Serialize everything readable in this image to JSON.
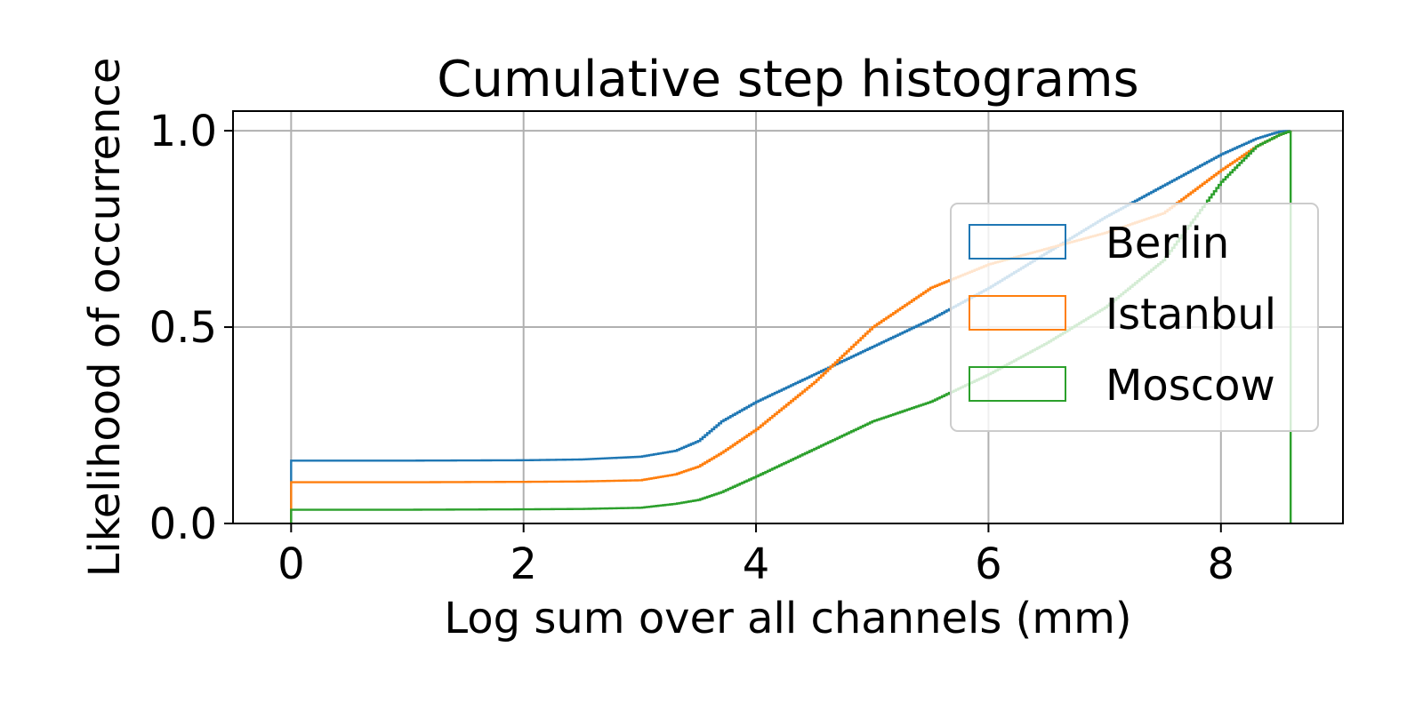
{
  "chart_data": {
    "type": "line",
    "title": "Cumulative step histograms",
    "xlabel": "Log sum over all channels (mm)",
    "ylabel": "Likelihood of occurrence",
    "xlim": [
      -0.5,
      9.05
    ],
    "ylim": [
      0.0,
      1.05
    ],
    "xticks": [
      0,
      2,
      4,
      6,
      8
    ],
    "yticks": [
      0.0,
      0.5,
      1.0
    ],
    "xtick_labels": [
      "0",
      "2",
      "4",
      "6",
      "8"
    ],
    "ytick_labels": [
      "0.0",
      "0.5",
      "1.0"
    ],
    "grid": true,
    "legend_position": "right",
    "step": true,
    "series": [
      {
        "name": "Berlin",
        "color": "#1f77b4",
        "points": [
          [
            0,
            0
          ],
          [
            0,
            0.16
          ],
          [
            1,
            0.16
          ],
          [
            2,
            0.161
          ],
          [
            2.5,
            0.163
          ],
          [
            3.0,
            0.17
          ],
          [
            3.3,
            0.185
          ],
          [
            3.5,
            0.21
          ],
          [
            3.7,
            0.26
          ],
          [
            4.0,
            0.31
          ],
          [
            4.5,
            0.38
          ],
          [
            5.0,
            0.45
          ],
          [
            5.5,
            0.52
          ],
          [
            6.0,
            0.6
          ],
          [
            6.5,
            0.69
          ],
          [
            7.0,
            0.78
          ],
          [
            7.5,
            0.86
          ],
          [
            8.0,
            0.94
          ],
          [
            8.3,
            0.98
          ],
          [
            8.5,
            0.998
          ],
          [
            8.6,
            1.0
          ]
        ]
      },
      {
        "name": "Istanbul",
        "color": "#ff7f0e",
        "points": [
          [
            0,
            0
          ],
          [
            0,
            0.105
          ],
          [
            1,
            0.105
          ],
          [
            2,
            0.106
          ],
          [
            2.5,
            0.107
          ],
          [
            3.0,
            0.11
          ],
          [
            3.3,
            0.125
          ],
          [
            3.5,
            0.145
          ],
          [
            3.7,
            0.18
          ],
          [
            4.0,
            0.24
          ],
          [
            4.5,
            0.36
          ],
          [
            5.0,
            0.5
          ],
          [
            5.5,
            0.6
          ],
          [
            6.0,
            0.66
          ],
          [
            6.5,
            0.7
          ],
          [
            7.0,
            0.74
          ],
          [
            7.5,
            0.79
          ],
          [
            8.0,
            0.9
          ],
          [
            8.3,
            0.96
          ],
          [
            8.5,
            0.99
          ],
          [
            8.6,
            1.0
          ]
        ]
      },
      {
        "name": "Moscow",
        "color": "#2ca02c",
        "points": [
          [
            0,
            0
          ],
          [
            0,
            0.035
          ],
          [
            1,
            0.035
          ],
          [
            2,
            0.036
          ],
          [
            2.5,
            0.037
          ],
          [
            3.0,
            0.04
          ],
          [
            3.3,
            0.05
          ],
          [
            3.5,
            0.06
          ],
          [
            3.7,
            0.08
          ],
          [
            4.0,
            0.12
          ],
          [
            4.5,
            0.19
          ],
          [
            5.0,
            0.26
          ],
          [
            5.5,
            0.31
          ],
          [
            6.0,
            0.38
          ],
          [
            6.5,
            0.46
          ],
          [
            7.0,
            0.55
          ],
          [
            7.5,
            0.67
          ],
          [
            8.0,
            0.87
          ],
          [
            8.3,
            0.96
          ],
          [
            8.5,
            0.99
          ],
          [
            8.6,
            1.0
          ],
          [
            8.6,
            0
          ]
        ]
      }
    ]
  }
}
